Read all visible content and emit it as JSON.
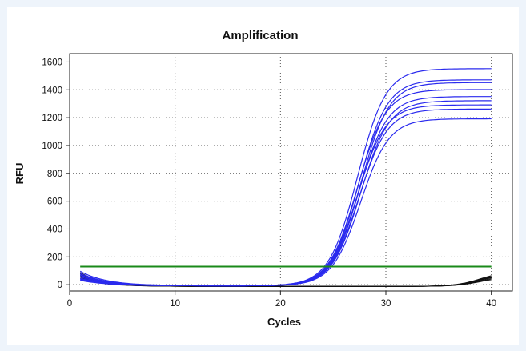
{
  "chart_data": {
    "type": "line",
    "title": "Amplification",
    "xlabel": "Cycles",
    "ylabel": "RFU",
    "xlim": [
      0,
      42
    ],
    "ylim": [
      -45,
      1660
    ],
    "x_ticks": [
      0,
      10,
      20,
      30,
      40
    ],
    "y_ticks": [
      0,
      200,
      400,
      600,
      800,
      1000,
      1200,
      1400,
      1600
    ],
    "grid": true,
    "threshold": {
      "value": 130,
      "x_range": [
        1,
        40
      ],
      "color": "#1a8a1a"
    },
    "amplified_series": {
      "color": "#2a2aee",
      "ct": 24,
      "baseline_start_cycle": 1,
      "plateaus": [
        1560,
        1480,
        1460,
        1410,
        1360,
        1330,
        1300,
        1270,
        1200
      ],
      "initial_values": [
        105,
        90,
        80,
        75,
        65,
        55,
        50,
        45,
        40
      ]
    },
    "negative_series": {
      "color": "#111111",
      "count": 6,
      "end_values": [
        110,
        100,
        95,
        90,
        80,
        70
      ]
    }
  }
}
